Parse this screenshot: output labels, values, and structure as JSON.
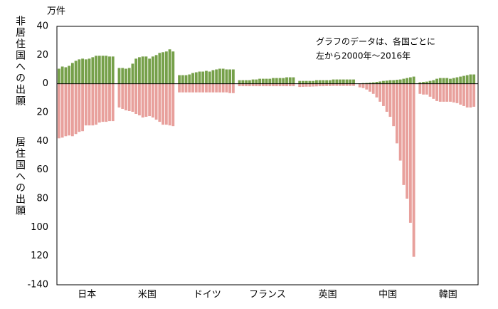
{
  "chart_data": {
    "type": "bar",
    "unit_label": "万件",
    "annotation": [
      "グラフのデータは、各国ごとに",
      "左から2000年～2016年"
    ],
    "categories": [
      "日本",
      "米国",
      "ドイツ",
      "フランス",
      "英国",
      "中国",
      "韓国"
    ],
    "series": [
      {
        "name": "非居住国への出願",
        "color": "#76a04a",
        "values": [
          [
            10.5,
            12,
            11.5,
            12.5,
            14.5,
            16,
            17,
            17.5,
            17,
            17.5,
            18.5,
            19.5,
            19.5,
            19.5,
            19.5,
            19,
            19
          ],
          [
            11,
            11,
            10.5,
            11,
            14,
            17.5,
            18.5,
            19,
            19,
            17.5,
            19,
            20,
            21.5,
            22,
            22.5,
            24,
            22.5
          ],
          [
            6,
            6,
            6,
            6.5,
            7.5,
            8,
            8.5,
            8.5,
            9,
            8.5,
            9.5,
            10,
            10.5,
            10.5,
            10,
            10,
            10
          ],
          [
            2.5,
            2.5,
            2.5,
            2.5,
            3,
            3,
            3.5,
            3.5,
            3.5,
            3.5,
            4,
            4,
            4,
            4,
            4.5,
            4.5,
            4.5
          ],
          [
            2,
            2,
            2,
            2,
            2,
            2.5,
            2.5,
            2.5,
            2.5,
            2.5,
            3,
            3,
            3,
            3,
            3,
            3,
            3
          ],
          [
            0.3,
            0.5,
            0.6,
            0.8,
            1,
            1.3,
            1.6,
            2,
            2.2,
            2.5,
            2.5,
            2.8,
            3,
            3.5,
            4,
            4.5,
            5
          ],
          [
            1,
            1.3,
            1.5,
            2,
            2.5,
            3.5,
            4,
            4,
            4,
            3.5,
            4,
            4.5,
            5,
            5.5,
            6,
            6.5,
            6.5
          ]
        ]
      },
      {
        "name": "居住国への出願",
        "color": "#e8a09c",
        "values": [
          [
            -38,
            -37.5,
            -36.5,
            -36,
            -36.5,
            -35,
            -33.5,
            -33,
            -29,
            -29,
            -29,
            -28.5,
            -27,
            -26.5,
            -26.5,
            -26,
            -26
          ],
          [
            -16.5,
            -17.5,
            -18.5,
            -19,
            -19.5,
            -21,
            -22,
            -23.5,
            -23,
            -22.5,
            -23.5,
            -25,
            -26.5,
            -28.5,
            -28.5,
            -29,
            -29.5
          ],
          [
            -6,
            -6,
            -6,
            -6,
            -6,
            -6,
            -6,
            -6,
            -6,
            -6,
            -6,
            -6,
            -6,
            -6,
            -6,
            -6.5,
            -6.5
          ],
          [
            -1.7,
            -1.7,
            -1.7,
            -1.7,
            -1.7,
            -1.7,
            -1.7,
            -1.7,
            -1.7,
            -1.7,
            -1.7,
            -1.7,
            -1.7,
            -1.7,
            -1.7,
            -1.7,
            -1.7
          ],
          [
            -2.2,
            -2.1,
            -2,
            -2,
            -1.9,
            -1.8,
            -1.7,
            -1.7,
            -1.6,
            -1.6,
            -1.5,
            -1.5,
            -1.5,
            -1.5,
            -1.5,
            -1.5,
            -1.5
          ],
          [
            -2.5,
            -3,
            -4,
            -5.5,
            -7,
            -9.5,
            -12.5,
            -15.5,
            -19.5,
            -23,
            -29.5,
            -41.5,
            -53.5,
            -70.5,
            -80,
            -96.8,
            -120.5
          ],
          [
            -7,
            -7.5,
            -7.5,
            -9,
            -10.5,
            -12,
            -12.5,
            -12.5,
            -12.5,
            -12.5,
            -13,
            -13.5,
            -14.5,
            -15.5,
            -16.5,
            -16.5,
            -16
          ]
        ]
      }
    ],
    "ylim": [
      -140,
      40
    ],
    "yticks": [
      -140,
      {
        "value": -120,
        "label": "120"
      },
      {
        "value": -100,
        "label": "100"
      },
      {
        "value": -80,
        "label": "80"
      },
      {
        "value": -60,
        "label": "60"
      },
      {
        "value": -40,
        "label": "40"
      },
      {
        "value": -20,
        "label": "20"
      },
      0,
      20,
      40
    ],
    "grid": false
  }
}
